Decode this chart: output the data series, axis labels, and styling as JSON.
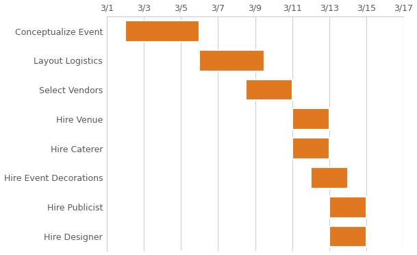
{
  "tasks": [
    "Conceptualize Event",
    "Layout Logistics",
    "Select Vendors",
    "Hire Venue",
    "Hire Caterer",
    "Hire Event Decorations",
    "Hire Publicist",
    "Hire Designer"
  ],
  "starts": [
    2,
    6,
    8.5,
    11,
    11,
    12,
    13,
    13
  ],
  "durations": [
    4,
    3.5,
    2.5,
    2,
    2,
    2,
    2,
    2
  ],
  "bar_color": "#E07820",
  "bar_height": 0.72,
  "x_min": 1,
  "x_max": 17,
  "x_ticks": [
    1,
    3,
    5,
    7,
    9,
    11,
    13,
    15,
    17
  ],
  "x_tick_labels": [
    "3/1",
    "3/3",
    "3/5",
    "3/7",
    "3/9",
    "3/11",
    "3/13",
    "3/15",
    "3/17"
  ],
  "grid_color": "#d0d0d0",
  "bg_color": "#ffffff",
  "text_color": "#595959",
  "spine_color": "#cccccc",
  "tick_fontsize": 9,
  "label_fontsize": 9
}
